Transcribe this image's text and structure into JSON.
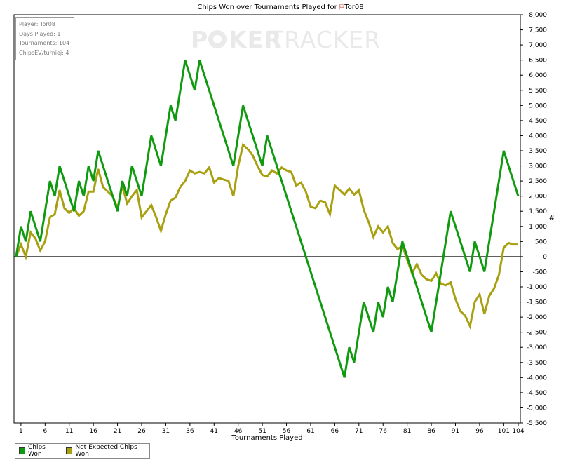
{
  "chart_data": {
    "type": "line",
    "title_prefix": "Chips Won over Tournaments Played for",
    "title_player": "Tor08",
    "xlabel": "Tournaments Played",
    "ylabel": "#",
    "xlim": [
      0,
      105
    ],
    "ylim": [
      -5500,
      8000
    ],
    "x_ticks": [
      1,
      6,
      11,
      16,
      21,
      26,
      31,
      36,
      41,
      46,
      51,
      56,
      61,
      66,
      71,
      76,
      81,
      86,
      91,
      96,
      101,
      104
    ],
    "y_ticks": [
      8000,
      7500,
      7000,
      6500,
      6000,
      5500,
      5000,
      4500,
      4000,
      3500,
      3000,
      2500,
      2000,
      1500,
      1000,
      500,
      0,
      -500,
      -1000,
      -1500,
      -2000,
      -2500,
      -3000,
      -3500,
      -4000,
      -4500,
      -5000,
      -5500
    ],
    "y_tick_labels": [
      "8,000",
      "7,500",
      "7,000",
      "6,500",
      "6,000",
      "5,500",
      "5,000",
      "4,500",
      "4,000",
      "3,500",
      "3,000",
      "2,500",
      "2,000",
      "1,500",
      "1,000",
      "500",
      "0",
      "-500",
      "-1,000",
      "-1,500",
      "-2,000",
      "-2,500",
      "-3,000",
      "-3,500",
      "-4,000",
      "-4,500",
      "-5,000",
      "-5,500"
    ],
    "series": [
      {
        "name": "Chips Won",
        "color": "#0f9a0f",
        "points": [
          [
            0,
            0
          ],
          [
            1,
            1000
          ],
          [
            2,
            500
          ],
          [
            3,
            1500
          ],
          [
            5,
            500
          ],
          [
            7,
            2500
          ],
          [
            8,
            2000
          ],
          [
            9,
            3000
          ],
          [
            12,
            1500
          ],
          [
            13,
            2500
          ],
          [
            14,
            2000
          ],
          [
            15,
            3000
          ],
          [
            16,
            2500
          ],
          [
            17,
            3500
          ],
          [
            21,
            1500
          ],
          [
            22,
            2500
          ],
          [
            23,
            2000
          ],
          [
            24,
            3000
          ],
          [
            26,
            2000
          ],
          [
            28,
            4000
          ],
          [
            30,
            3000
          ],
          [
            32,
            5000
          ],
          [
            33,
            4500
          ],
          [
            35,
            6500
          ],
          [
            37,
            5500
          ],
          [
            38,
            6500
          ],
          [
            45,
            3000
          ],
          [
            47,
            5000
          ],
          [
            51,
            3000
          ],
          [
            52,
            4000
          ],
          [
            68,
            -4000
          ],
          [
            69,
            -3000
          ],
          [
            70,
            -3500
          ],
          [
            72,
            -1500
          ],
          [
            74,
            -2500
          ],
          [
            75,
            -1500
          ],
          [
            76,
            -2000
          ],
          [
            77,
            -1000
          ],
          [
            78,
            -1500
          ],
          [
            80,
            500
          ],
          [
            86,
            -2500
          ],
          [
            90,
            1500
          ],
          [
            94,
            -500
          ],
          [
            95,
            500
          ],
          [
            97,
            -500
          ],
          [
            101,
            3500
          ],
          [
            104,
            2000
          ]
        ]
      },
      {
        "name": "Net Expected Chips Won",
        "color": "#a8a010",
        "points": [
          [
            0,
            0
          ],
          [
            1,
            400
          ],
          [
            2,
            0
          ],
          [
            3,
            800
          ],
          [
            4,
            600
          ],
          [
            5,
            200
          ],
          [
            6,
            500
          ],
          [
            7,
            1300
          ],
          [
            8,
            1400
          ],
          [
            9,
            2200
          ],
          [
            10,
            1600
          ],
          [
            11,
            1450
          ],
          [
            12,
            1600
          ],
          [
            13,
            1350
          ],
          [
            14,
            1500
          ],
          [
            15,
            2150
          ],
          [
            16,
            2150
          ],
          [
            17,
            2900
          ],
          [
            18,
            2300
          ],
          [
            20,
            2000
          ],
          [
            21,
            1600
          ],
          [
            22,
            2350
          ],
          [
            23,
            1750
          ],
          [
            24,
            2000
          ],
          [
            25,
            2200
          ],
          [
            26,
            1300
          ],
          [
            27,
            1500
          ],
          [
            28,
            1700
          ],
          [
            29,
            1300
          ],
          [
            30,
            850
          ],
          [
            31,
            1400
          ],
          [
            32,
            1850
          ],
          [
            33,
            1950
          ],
          [
            34,
            2300
          ],
          [
            35,
            2500
          ],
          [
            36,
            2850
          ],
          [
            37,
            2750
          ],
          [
            38,
            2800
          ],
          [
            39,
            2750
          ],
          [
            40,
            2950
          ],
          [
            41,
            2450
          ],
          [
            42,
            2600
          ],
          [
            43,
            2550
          ],
          [
            44,
            2500
          ],
          [
            45,
            2000
          ],
          [
            46,
            3000
          ],
          [
            47,
            3700
          ],
          [
            48,
            3550
          ],
          [
            49,
            3350
          ],
          [
            50,
            3000
          ],
          [
            51,
            2700
          ],
          [
            52,
            2650
          ],
          [
            53,
            2850
          ],
          [
            54,
            2750
          ],
          [
            55,
            2950
          ],
          [
            56,
            2850
          ],
          [
            57,
            2800
          ],
          [
            58,
            2350
          ],
          [
            59,
            2450
          ],
          [
            60,
            2150
          ],
          [
            61,
            1650
          ],
          [
            62,
            1600
          ],
          [
            63,
            1850
          ],
          [
            64,
            1800
          ],
          [
            65,
            1400
          ],
          [
            66,
            2350
          ],
          [
            67,
            2200
          ],
          [
            68,
            2050
          ],
          [
            69,
            2250
          ],
          [
            70,
            2050
          ],
          [
            71,
            2200
          ],
          [
            72,
            1550
          ],
          [
            73,
            1150
          ],
          [
            74,
            650
          ],
          [
            75,
            1000
          ],
          [
            76,
            800
          ],
          [
            77,
            1000
          ],
          [
            78,
            450
          ],
          [
            79,
            250
          ],
          [
            80,
            350
          ],
          [
            81,
            -100
          ],
          [
            82,
            -550
          ],
          [
            83,
            -250
          ],
          [
            84,
            -600
          ],
          [
            85,
            -750
          ],
          [
            86,
            -800
          ],
          [
            87,
            -550
          ],
          [
            88,
            -900
          ],
          [
            89,
            -950
          ],
          [
            90,
            -850
          ],
          [
            91,
            -1400
          ],
          [
            92,
            -1800
          ],
          [
            93,
            -1950
          ],
          [
            94,
            -2300
          ],
          [
            95,
            -1500
          ],
          [
            96,
            -1250
          ],
          [
            97,
            -1900
          ],
          [
            98,
            -1300
          ],
          [
            99,
            -1050
          ],
          [
            100,
            -600
          ],
          [
            101,
            300
          ],
          [
            102,
            450
          ],
          [
            103,
            400
          ],
          [
            104,
            400
          ]
        ]
      }
    ],
    "legend_placement": "bottom-left",
    "grid": false
  },
  "info_box": {
    "player": "Player: Tor08",
    "days": "Days Played: 1",
    "tournaments": "Tournaments: 104",
    "chipsev": "ChipsEV/turniej: 4"
  },
  "watermark": {
    "text1": "P",
    "text2": "KER",
    "text3": "TRACKER"
  },
  "legend": {
    "item1": "Chips Won",
    "item2": "Net Expected Chips Won"
  }
}
